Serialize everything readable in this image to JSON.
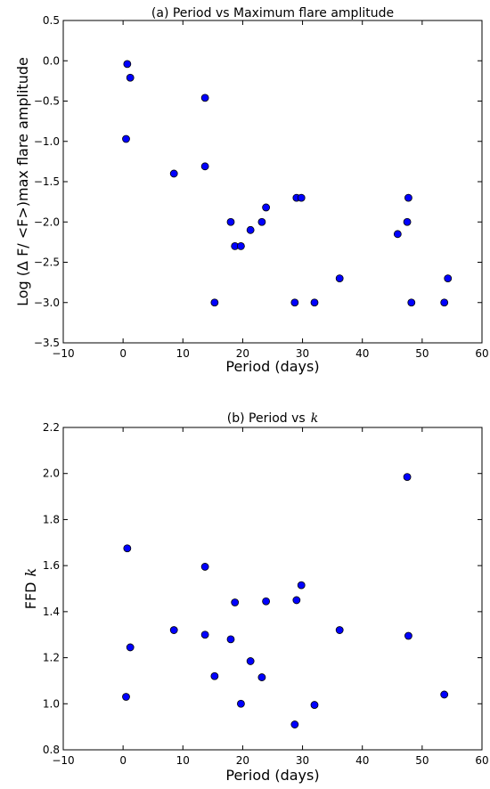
{
  "chart_data": [
    {
      "type": "scatter",
      "title": "(a) Period vs Maximum flare amplitude",
      "xlabel": "Period (days)",
      "ylabel": "Log (Δ F/ <F>)max flare amplitude",
      "xlim": [
        -10,
        60
      ],
      "ylim": [
        -3.5,
        0.5
      ],
      "xticks": [
        "−10",
        "0",
        "10",
        "20",
        "30",
        "40",
        "50",
        "60"
      ],
      "yticks": [
        "0.5",
        "0.0",
        "−0.5",
        "−1.0",
        "−1.5",
        "−2.0",
        "−2.5",
        "−3.0",
        "−3.5"
      ],
      "xtick_values": [
        -10,
        0,
        10,
        20,
        30,
        40,
        50,
        60
      ],
      "ytick_values": [
        0.5,
        0.0,
        -0.5,
        -1.0,
        -1.5,
        -2.0,
        -2.5,
        -3.0,
        -3.5
      ],
      "grid": false,
      "marker_color": "#0000ff",
      "x": [
        0.7,
        1.2,
        0.5,
        8.5,
        13.7,
        13.7,
        15.3,
        18.0,
        18.7,
        19.7,
        21.3,
        23.2,
        23.9,
        28.7,
        29.0,
        29.8,
        32.0,
        36.2,
        45.9,
        47.5,
        47.7,
        48.2,
        53.7,
        54.3
      ],
      "y": [
        -0.04,
        -0.21,
        -0.97,
        -1.4,
        -0.46,
        -1.31,
        -3.0,
        -2.0,
        -2.3,
        -2.3,
        -2.1,
        -2.0,
        -1.82,
        -3.0,
        -1.7,
        -1.7,
        -3.0,
        -2.7,
        -2.15,
        -2.0,
        -1.7,
        -3.0,
        -3.0,
        -2.7
      ]
    },
    {
      "type": "scatter",
      "title": "(b) Period vs",
      "title_symbol": "k",
      "xlabel": "Period (days)",
      "ylabel": "FFD",
      "ylabel_symbol": "k",
      "xlim": [
        -10,
        60
      ],
      "ylim": [
        0.8,
        2.2
      ],
      "xticks": [
        "−10",
        "0",
        "10",
        "20",
        "30",
        "40",
        "50",
        "60"
      ],
      "yticks": [
        "2.2",
        "2.0",
        "1.8",
        "1.6",
        "1.4",
        "1.2",
        "1.0",
        "0.8"
      ],
      "xtick_values": [
        -10,
        0,
        10,
        20,
        30,
        40,
        50,
        60
      ],
      "ytick_values": [
        2.2,
        2.0,
        1.8,
        1.6,
        1.4,
        1.2,
        1.0,
        0.8
      ],
      "grid": false,
      "marker_color": "#0000ff",
      "x": [
        0.7,
        1.2,
        0.5,
        8.5,
        13.7,
        13.7,
        15.3,
        18.0,
        18.7,
        19.7,
        21.3,
        23.2,
        23.9,
        28.7,
        29.0,
        29.8,
        36.2,
        47.5,
        47.7,
        53.7,
        32.0
      ],
      "y": [
        1.675,
        1.245,
        1.03,
        1.32,
        1.595,
        1.3,
        1.12,
        1.28,
        1.44,
        1.0,
        1.185,
        1.115,
        1.445,
        0.91,
        1.45,
        1.515,
        1.32,
        1.985,
        1.295,
        1.04,
        0.995
      ]
    }
  ]
}
